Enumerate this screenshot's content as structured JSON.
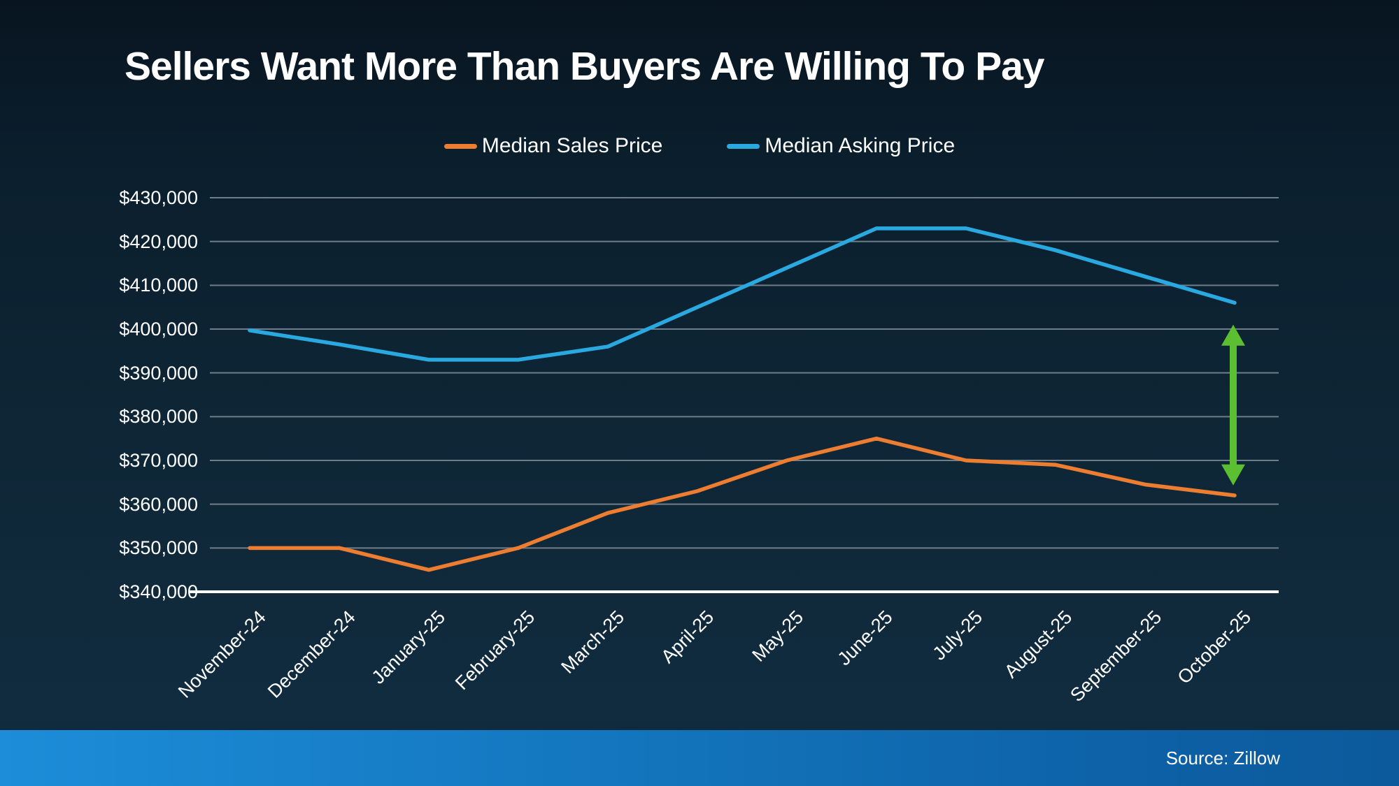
{
  "title": "Sellers Want More Than Buyers Are Willing To Pay",
  "source_note": "Source: Zillow",
  "colors": {
    "background_dark_navy": "#0e2636",
    "sales_orange": "#ED7D31",
    "asking_blue": "#29A9E0",
    "gap_arrow_green": "#5CBF31",
    "gridline_gray": "#6f7e88",
    "axis_white": "#ffffff",
    "bottom_bar_blue_left": "#1d8dd9",
    "bottom_bar_blue_right": "#0c5a9b",
    "text_white": "#ffffff"
  },
  "chart_data": {
    "type": "line",
    "categories": [
      "November-24",
      "December-24",
      "January-25",
      "February-25",
      "March-25",
      "April-25",
      "May-25",
      "June-25",
      "July-25",
      "August-25",
      "September-25",
      "October-25"
    ],
    "series": [
      {
        "name": "Median Sales Price",
        "color": "#ED7D31",
        "values": [
          350000,
          350000,
          345000,
          350000,
          358000,
          363000,
          370000,
          375000,
          370000,
          369000,
          364500,
          362000
        ]
      },
      {
        "name": "Median Asking Price",
        "color": "#29A9E0",
        "values": [
          399700,
          396500,
          393000,
          393000,
          396000,
          405000,
          414000,
          423000,
          423000,
          418000,
          412000,
          406000
        ]
      }
    ],
    "ylim": [
      340000,
      430000
    ],
    "ytick_step": 10000,
    "ytick_labels_top_to_bottom": [
      "$430,000",
      "$420,000",
      "$410,000",
      "$400,000",
      "$390,000",
      "$380,000",
      "$370,000",
      "$360,000",
      "$350,000",
      "$340,000"
    ],
    "grid": true,
    "legend_position": "top-center",
    "annotation_arrow": {
      "type": "double-headed-vertical-arrow",
      "x_category": "October-25",
      "from_value": 401000,
      "to_value": 364300,
      "color": "#5CBF31"
    }
  }
}
